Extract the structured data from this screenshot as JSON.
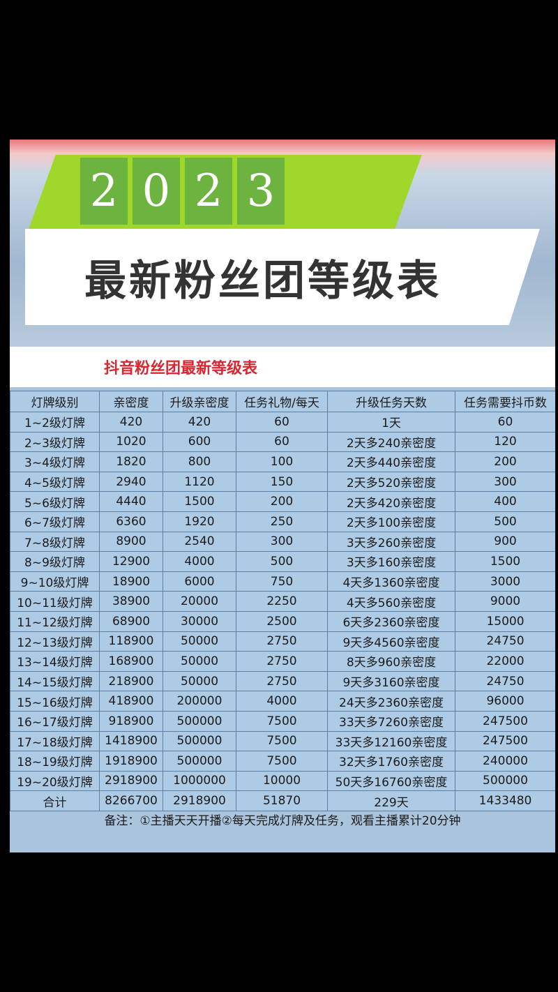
{
  "banner": {
    "year_digits": [
      "2",
      "0",
      "2",
      "3"
    ],
    "title": "最新粉丝团等级表"
  },
  "subtitle": "抖音粉丝团最新等级表",
  "table": {
    "headers": [
      "灯牌级别",
      "亲密度",
      "升级亲密度",
      "任务礼物/每天",
      "升级任务天数",
      "任务需要抖币数"
    ],
    "rows": [
      [
        "1~2级灯牌",
        "420",
        "420",
        "60",
        "1天",
        "60"
      ],
      [
        "2~3级灯牌",
        "1020",
        "600",
        "60",
        "2天多240亲密度",
        "120"
      ],
      [
        "3~4级灯牌",
        "1820",
        "800",
        "100",
        "2天多440亲密度",
        "200"
      ],
      [
        "4~5级灯牌",
        "2940",
        "1120",
        "150",
        "2天多520亲密度",
        "300"
      ],
      [
        "5~6级灯牌",
        "4440",
        "1500",
        "200",
        "2天多420亲密度",
        "400"
      ],
      [
        "6~7级灯牌",
        "6360",
        "1920",
        "250",
        "2天多100亲密度",
        "500"
      ],
      [
        "7~8级灯牌",
        "8900",
        "2540",
        "300",
        "3天多260亲密度",
        "900"
      ],
      [
        "8~9级灯牌",
        "12900",
        "4000",
        "500",
        "3天多160亲密度",
        "1500"
      ],
      [
        "9~10级灯牌",
        "18900",
        "6000",
        "750",
        "4天多1360亲密度",
        "3000"
      ],
      [
        "10~11级灯牌",
        "38900",
        "20000",
        "2250",
        "4天多560亲密度",
        "9000"
      ],
      [
        "11~12级灯牌",
        "68900",
        "30000",
        "2500",
        "6天多2360亲密度",
        "15000"
      ],
      [
        "12~13级灯牌",
        "118900",
        "50000",
        "2750",
        "9天多4560亲密度",
        "24750"
      ],
      [
        "13~14级灯牌",
        "168900",
        "50000",
        "2750",
        "8天多960亲密度",
        "22000"
      ],
      [
        "14~15级灯牌",
        "218900",
        "50000",
        "2750",
        "9天多3160亲密度",
        "24750"
      ],
      [
        "15~16级灯牌",
        "418900",
        "200000",
        "4000",
        "24天多2360亲密度",
        "96000"
      ],
      [
        "16~17级灯牌",
        "918900",
        "500000",
        "7500",
        "33天多7260亲密度",
        "247500"
      ],
      [
        "17~18级灯牌",
        "1418900",
        "500000",
        "7500",
        "33天多12160亲密度",
        "247500"
      ],
      [
        "18~19级灯牌",
        "1918900",
        "500000",
        "7500",
        "32天多1760亲密度",
        "240000"
      ],
      [
        "19~20级灯牌",
        "2918900",
        "1000000",
        "10000",
        "50天多16760亲密度",
        "500000"
      ],
      [
        "合计",
        "8266700",
        "2918900",
        "51870",
        "229天",
        "1433480"
      ]
    ]
  },
  "note": "备注：①主播天天开播②每天完成灯牌及任务，观看主播累计20分钟"
}
